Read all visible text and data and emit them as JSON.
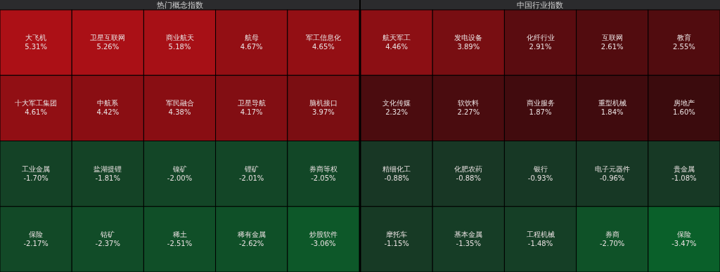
{
  "chart_data": [
    {
      "type": "other",
      "title": "热门概念指数",
      "categories": [
        "大飞机",
        "卫星互联网",
        "商业航天",
        "航母",
        "军工信息化",
        "十大军工集团",
        "中航系",
        "军民融合",
        "卫星导航",
        "脑机接口",
        "工业金属",
        "盐湖提锂",
        "镍矿",
        "锂矿",
        "券商等权",
        "保险",
        "钴矿",
        "稀土",
        "稀有金属",
        "炒股软件"
      ],
      "values": [
        5.31,
        5.26,
        5.18,
        4.67,
        4.65,
        4.61,
        4.42,
        4.38,
        4.17,
        3.97,
        -1.7,
        -1.81,
        -2.0,
        -2.01,
        -2.05,
        -2.17,
        -2.37,
        -2.51,
        -2.62,
        -3.06
      ],
      "value_labels": [
        "5.31%",
        "5.26%",
        "5.18%",
        "4.67%",
        "4.65%",
        "4.61%",
        "4.42%",
        "4.38%",
        "4.17%",
        "3.97%",
        "-1.70%",
        "-1.81%",
        "-2.00%",
        "-2.01%",
        "-2.05%",
        "-2.17%",
        "-2.37%",
        "-2.51%",
        "-2.62%",
        "-3.06%"
      ]
    },
    {
      "type": "other",
      "title": "中国行业指数",
      "categories": [
        "航天军工",
        "发电设备",
        "化纤行业",
        "互联网",
        "教育",
        "文化传媒",
        "软饮料",
        "商业服务",
        "重型机械",
        "房地产",
        "精细化工",
        "化肥农药",
        "银行",
        "电子元器件",
        "贵金属",
        "摩托车",
        "基本金属",
        "工程机械",
        "券商",
        "保险"
      ],
      "values": [
        4.46,
        3.89,
        2.91,
        2.61,
        2.55,
        2.32,
        2.27,
        1.87,
        1.84,
        1.6,
        -0.88,
        -0.88,
        -0.93,
        -0.96,
        -1.08,
        -1.15,
        -1.35,
        -1.48,
        -2.7,
        -3.47
      ],
      "value_labels": [
        "4.46%",
        "3.89%",
        "2.91%",
        "2.61%",
        "2.55%",
        "2.32%",
        "2.27%",
        "1.87%",
        "1.84%",
        "1.60%",
        "-0.88%",
        "-0.88%",
        "-0.93%",
        "-0.96%",
        "-1.08%",
        "-1.15%",
        "-1.35%",
        "-1.48%",
        "-2.70%",
        "-3.47%"
      ]
    }
  ]
}
